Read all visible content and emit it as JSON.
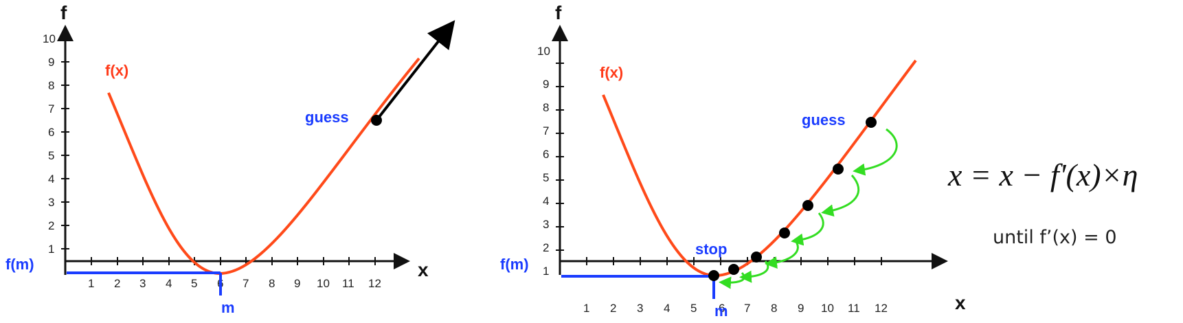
{
  "left_plot": {
    "y_axis_label": "f",
    "x_axis_label": "x",
    "x_ticks": [
      "1",
      "2",
      "3",
      "4",
      "5",
      "6",
      "7",
      "8",
      "9",
      "10",
      "11",
      "12"
    ],
    "y_ticks": [
      "1",
      "2",
      "3",
      "4",
      "5",
      "6",
      "7",
      "8",
      "9",
      "10"
    ],
    "curve_label": "f(x)",
    "guess_label": "guess",
    "fm_label": "f(m)",
    "m_label": "m",
    "colors": {
      "curve": "#ff4a1a",
      "minimum_lines": "#1a3cff",
      "gradient_arrow": "#000000"
    }
  },
  "right_plot": {
    "y_axis_label": "f",
    "x_axis_label": "x",
    "x_ticks": [
      "1",
      "2",
      "3",
      "4",
      "5",
      "6",
      "7",
      "8",
      "9",
      "10",
      "11",
      "12"
    ],
    "y_ticks": [
      "1",
      "2",
      "3",
      "4",
      "5",
      "6",
      "7",
      "8",
      "9",
      "10"
    ],
    "curve_label": "f(x)",
    "guess_label": "guess",
    "stop_label": "stop",
    "fm_label": "f(m)",
    "m_label": "m",
    "colors": {
      "curve": "#ff4a1a",
      "minimum_lines": "#1a3cff",
      "step_arrows": "#33dd22"
    }
  },
  "formula": "x = x − f'(x)×η",
  "until_text": "until f’(x) = 0"
}
